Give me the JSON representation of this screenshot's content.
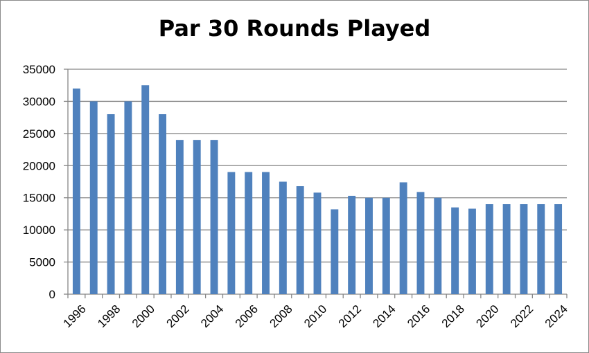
{
  "chart_data": {
    "type": "bar",
    "title": "Par 30 Rounds Played",
    "xlabel": "",
    "ylabel": "",
    "categories": [
      "1996",
      "1997",
      "1998",
      "1999",
      "2000",
      "2001",
      "2002",
      "2003",
      "2004",
      "2005",
      "2006",
      "2007",
      "2008",
      "2009",
      "2010",
      "2011",
      "2012",
      "2013",
      "2014",
      "2015",
      "2016",
      "2017",
      "2018",
      "2019",
      "2020",
      "2021",
      "2022",
      "2023",
      "2024"
    ],
    "x_tick_labels": [
      "1996",
      "1998",
      "2000",
      "2002",
      "2004",
      "2006",
      "2008",
      "2010",
      "2012",
      "2014",
      "2016",
      "2018",
      "2020",
      "2022",
      "2024"
    ],
    "values": [
      32000,
      30000,
      28000,
      30000,
      32500,
      28000,
      24000,
      24000,
      24000,
      19000,
      19000,
      19000,
      17500,
      16800,
      15800,
      13200,
      15300,
      15000,
      15000,
      17400,
      15900,
      15000,
      13500,
      13300,
      14000,
      14000,
      14000,
      14000,
      14000
    ],
    "ylim": [
      0,
      35000
    ],
    "y_ticks": [
      0,
      5000,
      10000,
      15000,
      20000,
      25000,
      30000,
      35000
    ],
    "grid": true,
    "legend": "none",
    "bar_color": "#4f81bd",
    "grid_color": "#868686"
  }
}
